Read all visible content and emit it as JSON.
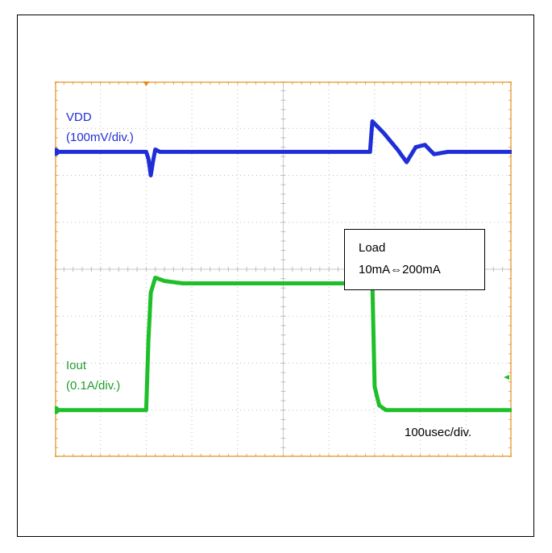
{
  "chart_data": {
    "type": "line",
    "title": "",
    "xlabel": "",
    "ylabel": "",
    "grid": true,
    "divisions": {
      "x": 10,
      "y": 8
    },
    "x_unit": "div",
    "series": [
      {
        "name": "VDD",
        "scale_label": "(100mV/div.)",
        "color": "#1f2fd6",
        "x": [
          0,
          2.0,
          2.05,
          2.1,
          2.15,
          2.2,
          2.3,
          6.9,
          6.95,
          7.2,
          7.5,
          7.7,
          7.9,
          8.1,
          8.3,
          8.6,
          10
        ],
        "y": [
          0,
          0,
          -0.15,
          -0.5,
          -0.2,
          0.05,
          0,
          0,
          0.65,
          0.4,
          0.05,
          -0.22,
          0.1,
          0.15,
          -0.05,
          0,
          0
        ]
      },
      {
        "name": "Iout",
        "scale_label": "(0.1A/div.)",
        "color": "#1fbf2a",
        "x": [
          0,
          2.0,
          2.05,
          2.1,
          2.2,
          2.4,
          2.8,
          6.95,
          7.0,
          7.1,
          7.25,
          10
        ],
        "y": [
          0,
          0,
          1.5,
          2.5,
          2.82,
          2.75,
          2.7,
          2.7,
          0.5,
          0.1,
          0,
          0
        ]
      }
    ]
  },
  "labels": {
    "vdd_name": "VDD",
    "vdd_scale": "(100mV/div.)",
    "iout_name": "Iout",
    "iout_scale": "(0.1A/div.)",
    "load_title": "Load",
    "load_range": "10mA⇔200mA",
    "timebase": "100usec/div."
  },
  "colors": {
    "vdd": "#1f2fd6",
    "iout": "#1fbf2a",
    "graticule": "#e8a64a",
    "trigger_marker": "#e8891a"
  }
}
